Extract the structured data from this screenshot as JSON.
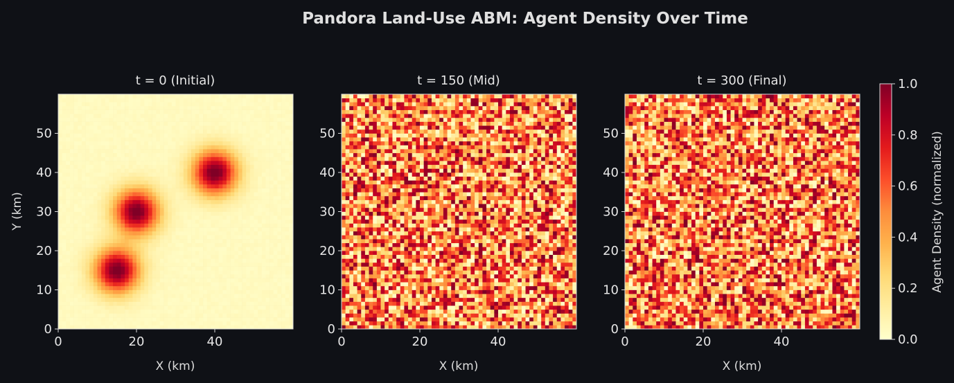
{
  "chart_data": {
    "type": "heatmap",
    "title": "Pandora Land-Use ABM: Agent Density Over Time",
    "grid": false,
    "grid_size": [
      60,
      60
    ],
    "x_range": [
      0,
      60
    ],
    "y_range": [
      0,
      60
    ],
    "x_ticks": [
      0,
      20,
      40
    ],
    "y_ticks": [
      0,
      10,
      20,
      30,
      40,
      50
    ],
    "colormap": "YlOrRd",
    "colormap_stops": [
      "#ffffcc",
      "#ffeda0",
      "#fed976",
      "#feb24c",
      "#fd8d3c",
      "#fc4e2a",
      "#e31a1c",
      "#bd0026",
      "#800026"
    ],
    "panels": [
      {
        "title": "t = 0 (Initial)",
        "xlabel": "X (km)",
        "ylabel": "Y (km)",
        "pattern": "gaussian-clusters",
        "clusters": [
          {
            "x": 15,
            "y": 15,
            "peak": 1.0
          },
          {
            "x": 20,
            "y": 30,
            "peak": 1.0
          },
          {
            "x": 40,
            "y": 40,
            "peak": 1.0
          }
        ],
        "cluster_sigma_km": 4
      },
      {
        "title": "t = 150 (Mid)",
        "xlabel": "X (km)",
        "ylabel": "",
        "pattern": "random-uniform",
        "value_range": [
          0,
          1
        ]
      },
      {
        "title": "t = 300 (Final)",
        "xlabel": "X (km)",
        "ylabel": "",
        "pattern": "random-uniform",
        "value_range": [
          0,
          1
        ]
      }
    ],
    "colorbar": {
      "label": "Agent Density (normalized)",
      "range": [
        0,
        1
      ],
      "ticks": [
        "0.0",
        "0.2",
        "0.4",
        "0.6",
        "0.8",
        "1.0"
      ]
    }
  }
}
